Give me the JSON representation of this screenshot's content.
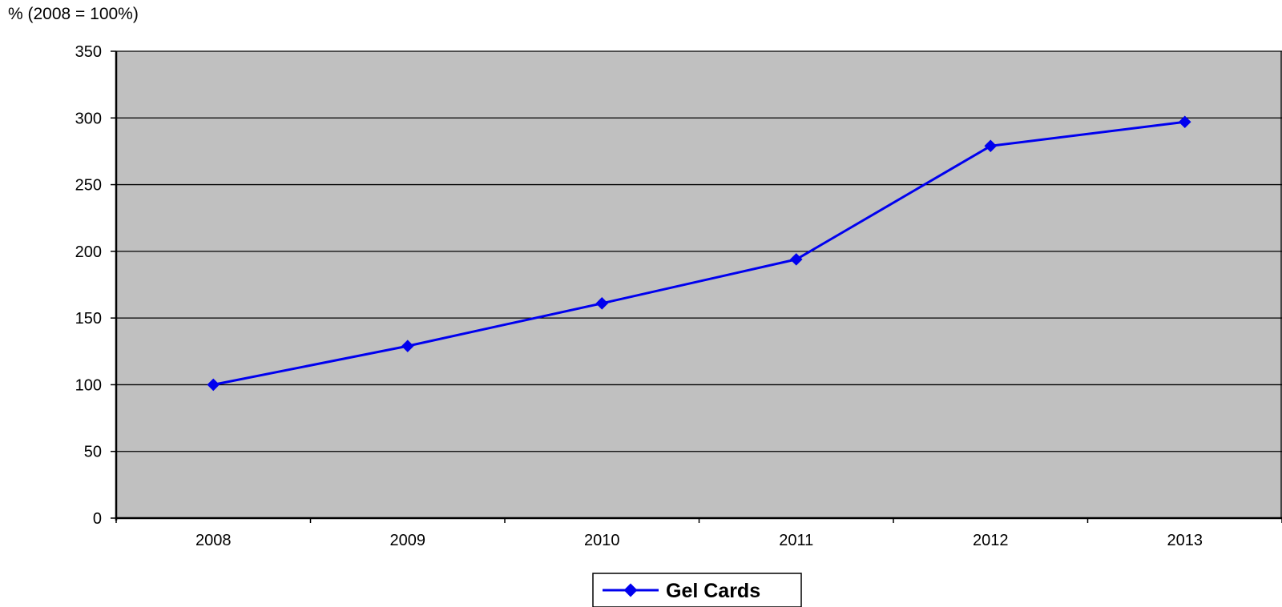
{
  "chart_data": {
    "type": "line",
    "ylabel": "% (2008 = 100%)",
    "xlabel": "",
    "categories": [
      "2008",
      "2009",
      "2010",
      "2011",
      "2012",
      "2013"
    ],
    "series": [
      {
        "name": "Gel Cards",
        "values": [
          100,
          129,
          161,
          194,
          279,
          297
        ],
        "color": "#0000ee"
      }
    ],
    "ylim": [
      0,
      350
    ],
    "yticks": [
      0,
      50,
      100,
      150,
      200,
      250,
      300,
      350
    ],
    "grid": true,
    "plot_background": "#c0c0c0",
    "legend_placement": "bottom-center"
  }
}
